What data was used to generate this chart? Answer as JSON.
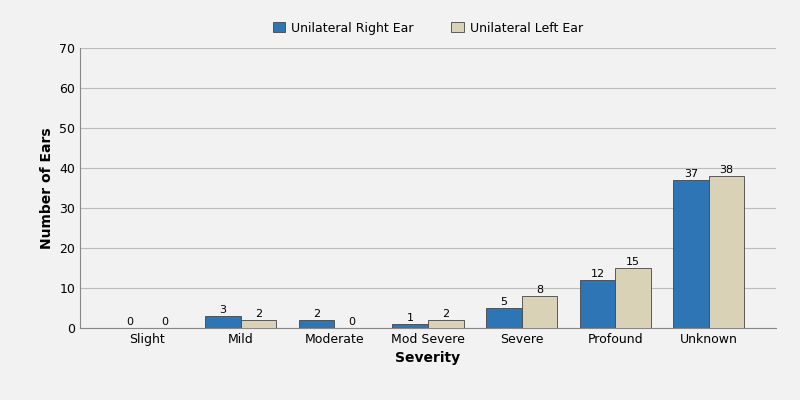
{
  "categories": [
    "Slight",
    "Mild",
    "Moderate",
    "Mod Severe",
    "Severe",
    "Profound",
    "Unknown"
  ],
  "right_ear": [
    0,
    3,
    2,
    1,
    5,
    12,
    37
  ],
  "left_ear": [
    0,
    2,
    0,
    2,
    8,
    15,
    38
  ],
  "right_color": "#2E75B6",
  "left_color": "#D9D2B6",
  "right_label": "Unilateral Right Ear",
  "left_label": "Unilateral Left Ear",
  "xlabel": "Severity",
  "ylabel": "Number of Ears",
  "ylim": [
    0,
    70
  ],
  "yticks": [
    0,
    10,
    20,
    30,
    40,
    50,
    60,
    70
  ],
  "bar_width": 0.38,
  "grid_color": "#BBBBBB",
  "bg_color": "#F2F2F2",
  "axis_label_fontsize": 10,
  "tick_fontsize": 9,
  "legend_fontsize": 9,
  "value_fontsize": 8
}
